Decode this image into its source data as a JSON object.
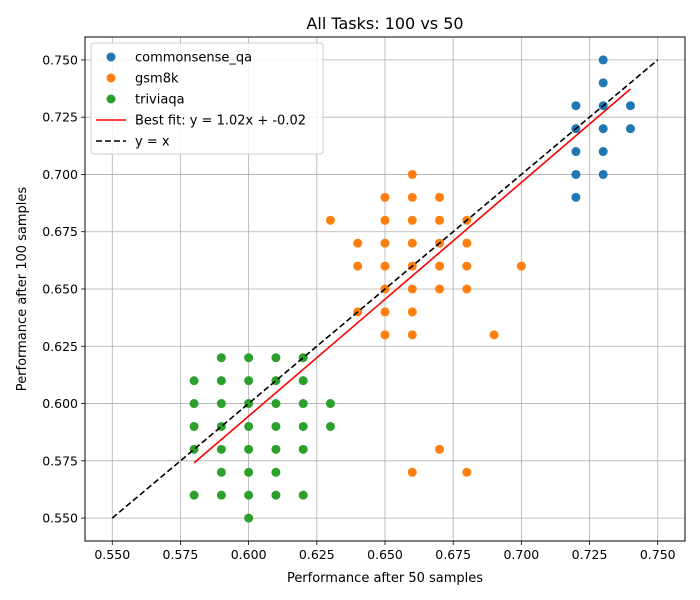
{
  "chart_data": {
    "type": "scatter",
    "title": "All Tasks: 100 vs 50",
    "xlabel": "Performance after 50 samples",
    "ylabel": "Performance after 100 samples",
    "xlim": [
      0.54,
      0.76
    ],
    "ylim": [
      0.54,
      0.76
    ],
    "xticks": [
      "0.550",
      "0.575",
      "0.600",
      "0.625",
      "0.650",
      "0.675",
      "0.700",
      "0.725",
      "0.750"
    ],
    "yticks": [
      "0.550",
      "0.575",
      "0.600",
      "0.625",
      "0.650",
      "0.675",
      "0.700",
      "0.725",
      "0.750"
    ],
    "grid": true,
    "legend_position": "top-left",
    "series": [
      {
        "name": "commonsense_qa",
        "color": "#1f77b4",
        "points": [
          [
            0.72,
            0.73
          ],
          [
            0.72,
            0.72
          ],
          [
            0.72,
            0.71
          ],
          [
            0.72,
            0.7
          ],
          [
            0.72,
            0.69
          ],
          [
            0.73,
            0.75
          ],
          [
            0.73,
            0.74
          ],
          [
            0.73,
            0.73
          ],
          [
            0.73,
            0.72
          ],
          [
            0.73,
            0.71
          ],
          [
            0.73,
            0.7
          ],
          [
            0.74,
            0.73
          ],
          [
            0.74,
            0.72
          ]
        ]
      },
      {
        "name": "gsm8k",
        "color": "#ff7f0e",
        "points": [
          [
            0.63,
            0.68
          ],
          [
            0.64,
            0.67
          ],
          [
            0.64,
            0.66
          ],
          [
            0.64,
            0.64
          ],
          [
            0.65,
            0.69
          ],
          [
            0.65,
            0.68
          ],
          [
            0.65,
            0.67
          ],
          [
            0.65,
            0.66
          ],
          [
            0.65,
            0.65
          ],
          [
            0.65,
            0.64
          ],
          [
            0.65,
            0.63
          ],
          [
            0.66,
            0.7
          ],
          [
            0.66,
            0.69
          ],
          [
            0.66,
            0.68
          ],
          [
            0.66,
            0.67
          ],
          [
            0.66,
            0.66
          ],
          [
            0.66,
            0.65
          ],
          [
            0.66,
            0.64
          ],
          [
            0.66,
            0.63
          ],
          [
            0.66,
            0.57
          ],
          [
            0.67,
            0.69
          ],
          [
            0.67,
            0.68
          ],
          [
            0.67,
            0.67
          ],
          [
            0.67,
            0.66
          ],
          [
            0.67,
            0.65
          ],
          [
            0.67,
            0.58
          ],
          [
            0.68,
            0.68
          ],
          [
            0.68,
            0.67
          ],
          [
            0.68,
            0.66
          ],
          [
            0.68,
            0.65
          ],
          [
            0.68,
            0.57
          ],
          [
            0.69,
            0.63
          ],
          [
            0.7,
            0.66
          ]
        ]
      },
      {
        "name": "triviaqa",
        "color": "#2ca02c",
        "points": [
          [
            0.58,
            0.61
          ],
          [
            0.58,
            0.6
          ],
          [
            0.58,
            0.59
          ],
          [
            0.58,
            0.58
          ],
          [
            0.58,
            0.56
          ],
          [
            0.59,
            0.62
          ],
          [
            0.59,
            0.61
          ],
          [
            0.59,
            0.6
          ],
          [
            0.59,
            0.59
          ],
          [
            0.59,
            0.58
          ],
          [
            0.59,
            0.57
          ],
          [
            0.59,
            0.56
          ],
          [
            0.6,
            0.62
          ],
          [
            0.6,
            0.61
          ],
          [
            0.6,
            0.6
          ],
          [
            0.6,
            0.59
          ],
          [
            0.6,
            0.58
          ],
          [
            0.6,
            0.57
          ],
          [
            0.6,
            0.56
          ],
          [
            0.6,
            0.55
          ],
          [
            0.61,
            0.62
          ],
          [
            0.61,
            0.61
          ],
          [
            0.61,
            0.6
          ],
          [
            0.61,
            0.59
          ],
          [
            0.61,
            0.58
          ],
          [
            0.61,
            0.57
          ],
          [
            0.61,
            0.56
          ],
          [
            0.62,
            0.62
          ],
          [
            0.62,
            0.61
          ],
          [
            0.62,
            0.6
          ],
          [
            0.62,
            0.59
          ],
          [
            0.62,
            0.58
          ],
          [
            0.62,
            0.56
          ],
          [
            0.63,
            0.6
          ],
          [
            0.63,
            0.59
          ]
        ]
      }
    ],
    "lines": [
      {
        "name": "Best fit: y = 1.02x + -0.02",
        "color": "#ff0000",
        "style": "solid",
        "slope": 1.02,
        "intercept": -0.0175,
        "x_range": [
          0.58,
          0.74
        ]
      },
      {
        "name": "y = x",
        "color": "#000000",
        "style": "dashed",
        "slope": 1.0,
        "intercept": 0.0,
        "x_range": [
          0.55,
          0.75
        ]
      }
    ]
  }
}
